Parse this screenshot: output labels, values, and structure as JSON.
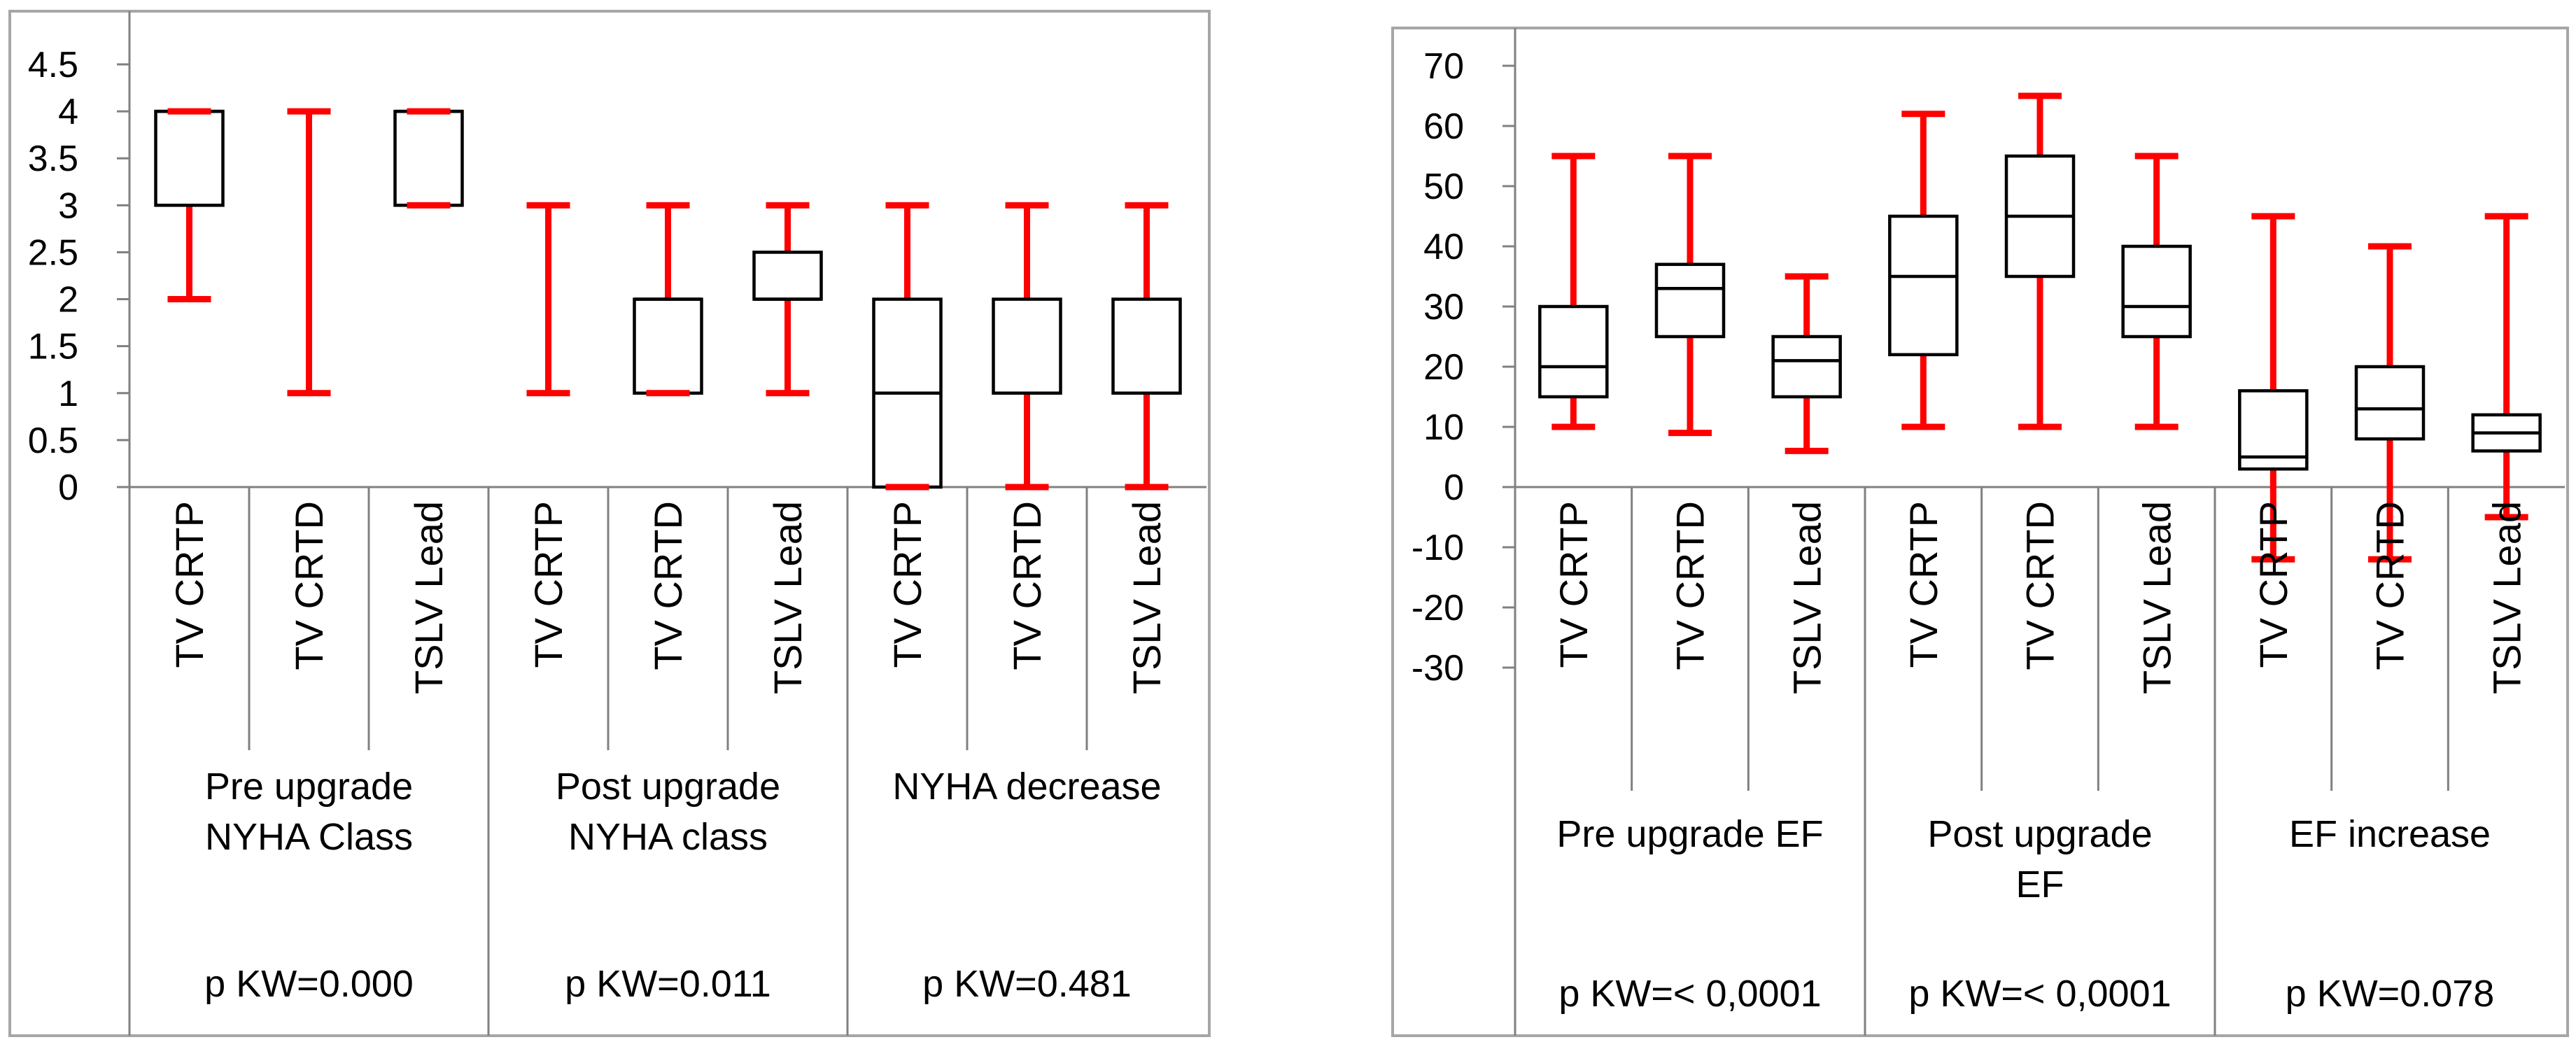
{
  "colors": {
    "whisker_red": "#fe0000",
    "box_stroke": "#000000",
    "frame_gray": "#a6a6a6",
    "line_gray": "#808080",
    "text": "#000000",
    "background": "#ffffff"
  },
  "chart_data": [
    {
      "type": "box",
      "title": "",
      "ylim": [
        0,
        4.5
      ],
      "yticks": [
        4.5,
        4,
        3.5,
        3,
        2.5,
        2,
        1.5,
        1,
        0.5,
        0
      ],
      "ytick_labels": [
        "4.5",
        "4",
        "3.5",
        "3",
        "2.5",
        "2",
        "1.5",
        "1",
        "0.5",
        "0"
      ],
      "grid": false,
      "legend": "none",
      "groups": [
        {
          "label_lines": [
            "Pre upgrade",
            "NYHA Class"
          ],
          "p_label": "p KW=0.000",
          "boxes": [
            {
              "category": "TV CRTP",
              "whisker_low": 2,
              "q1": 3,
              "median": 4,
              "q3": 4,
              "whisker_high": 4
            },
            {
              "category": "TV CRTD",
              "whisker_low": 1,
              "q1": 4,
              "median": 4,
              "q3": 4,
              "whisker_high": 4
            },
            {
              "category": "TSLV Lead",
              "whisker_low": 3,
              "q1": 3,
              "median": 4,
              "q3": 4,
              "whisker_high": 4
            }
          ]
        },
        {
          "label_lines": [
            "Post upgrade",
            "NYHA class"
          ],
          "p_label": "p KW=0.011",
          "boxes": [
            {
              "category": "TV CRTP",
              "whisker_low": 1,
              "q1": 2,
              "median": 2,
              "q3": 2,
              "whisker_high": 3
            },
            {
              "category": "TV CRTD",
              "whisker_low": 1,
              "q1": 1,
              "median": 2,
              "q3": 2,
              "whisker_high": 3
            },
            {
              "category": "TSLV Lead",
              "whisker_low": 1,
              "q1": 2,
              "median": 2,
              "q3": 2.5,
              "whisker_high": 3
            }
          ]
        },
        {
          "label_lines": [
            "NYHA decrease"
          ],
          "p_label": "p KW=0.481",
          "boxes": [
            {
              "category": "TV CRTP",
              "whisker_low": 0,
              "q1": 0,
              "median": 1,
              "q3": 2,
              "whisker_high": 3
            },
            {
              "category": "TV CRTD",
              "whisker_low": 0,
              "q1": 1,
              "median": 1,
              "q3": 2,
              "whisker_high": 3
            },
            {
              "category": "TSLV Lead",
              "whisker_low": 0,
              "q1": 1,
              "median": 1,
              "q3": 2,
              "whisker_high": 3
            }
          ]
        }
      ]
    },
    {
      "type": "box",
      "title": "",
      "ylim": [
        -30,
        70
      ],
      "yticks": [
        70,
        60,
        50,
        40,
        30,
        20,
        10,
        0,
        -10,
        -20,
        -30
      ],
      "ytick_labels": [
        "70",
        "60",
        "50",
        "40",
        "30",
        "20",
        "10",
        "0",
        "-10",
        "-20",
        "-30"
      ],
      "grid": false,
      "legend": "none",
      "groups": [
        {
          "label_lines": [
            "Pre upgrade EF"
          ],
          "p_label": "p KW=< 0,0001",
          "boxes": [
            {
              "category": "TV CRTP",
              "whisker_low": 10,
              "q1": 15,
              "median": 20,
              "q3": 30,
              "whisker_high": 55
            },
            {
              "category": "TV CRTD",
              "whisker_low": 9,
              "q1": 25,
              "median": 33,
              "q3": 37,
              "whisker_high": 55
            },
            {
              "category": "TSLV Lead",
              "whisker_low": 6,
              "q1": 15,
              "median": 21,
              "q3": 25,
              "whisker_high": 35
            }
          ]
        },
        {
          "label_lines": [
            "Post upgrade",
            "EF"
          ],
          "p_label": "p KW=< 0,0001",
          "boxes": [
            {
              "category": "TV CRTP",
              "whisker_low": 10,
              "q1": 22,
              "median": 35,
              "q3": 45,
              "whisker_high": 62
            },
            {
              "category": "TV CRTD",
              "whisker_low": 10,
              "q1": 35,
              "median": 45,
              "q3": 55,
              "whisker_high": 65
            },
            {
              "category": "TSLV Lead",
              "whisker_low": 10,
              "q1": 25,
              "median": 30,
              "q3": 40,
              "whisker_high": 55
            }
          ]
        },
        {
          "label_lines": [
            "EF increase"
          ],
          "p_label": "p KW=0.078",
          "boxes": [
            {
              "category": "TV CRTP",
              "whisker_low": -12,
              "q1": 3,
              "median": 5,
              "q3": 16,
              "whisker_high": 45
            },
            {
              "category": "TV CRTD",
              "whisker_low": -12,
              "q1": 8,
              "median": 13,
              "q3": 20,
              "whisker_high": 40
            },
            {
              "category": "TSLV Lead",
              "whisker_low": -5,
              "q1": 6,
              "median": 9,
              "q3": 12,
              "whisker_high": 45
            }
          ]
        }
      ]
    }
  ]
}
